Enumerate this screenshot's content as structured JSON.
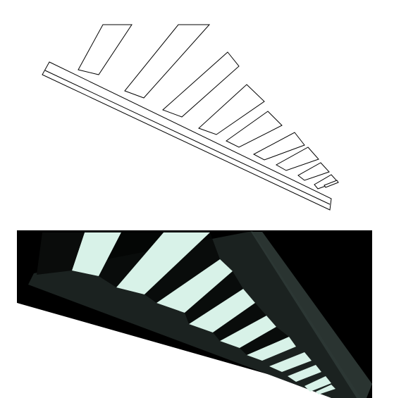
{
  "figure": {
    "panels": [
      {
        "kind": "line-drawing",
        "outline_color": "#000000",
        "fill_color": "#ffffff",
        "slat_count": 10
      },
      {
        "kind": "photo",
        "background_color": "#000000",
        "light_color": "#d8f2e8",
        "beam_color": "#1b2220",
        "edge_color": "#2f3a36",
        "slat_count": 10
      }
    ]
  }
}
